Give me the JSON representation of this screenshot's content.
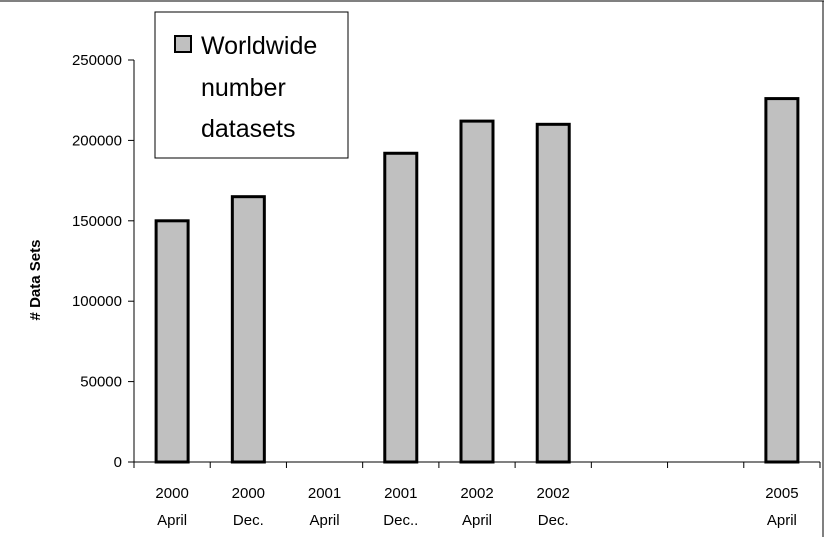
{
  "chart_data": {
    "type": "bar",
    "categories": [
      [
        "2000",
        "April"
      ],
      [
        "2000",
        "Dec."
      ],
      [
        "2001",
        "April"
      ],
      [
        "2001",
        "Dec.."
      ],
      [
        "2002",
        "April"
      ],
      [
        "2002",
        "Dec."
      ],
      [
        "",
        ""
      ],
      [
        "",
        ""
      ],
      [
        "2005",
        "April"
      ]
    ],
    "series": [
      {
        "name": "Worldwide number datasets",
        "values": [
          150000,
          165000,
          null,
          192000,
          212000,
          210000,
          null,
          null,
          226000
        ]
      }
    ],
    "legend_lines": [
      "Worldwide",
      "number",
      "datasets"
    ],
    "xlabel": "",
    "ylabel": "# Data Sets",
    "ylim": [
      0,
      250000
    ],
    "yticks": [
      "0",
      "50000",
      "100000",
      "150000",
      "200000",
      "250000"
    ],
    "grid": false,
    "legend_position": "top-left",
    "colors": {
      "bar_fill": "#c0c0c0",
      "bar_stroke": "#000000",
      "axis": "#000000"
    }
  }
}
